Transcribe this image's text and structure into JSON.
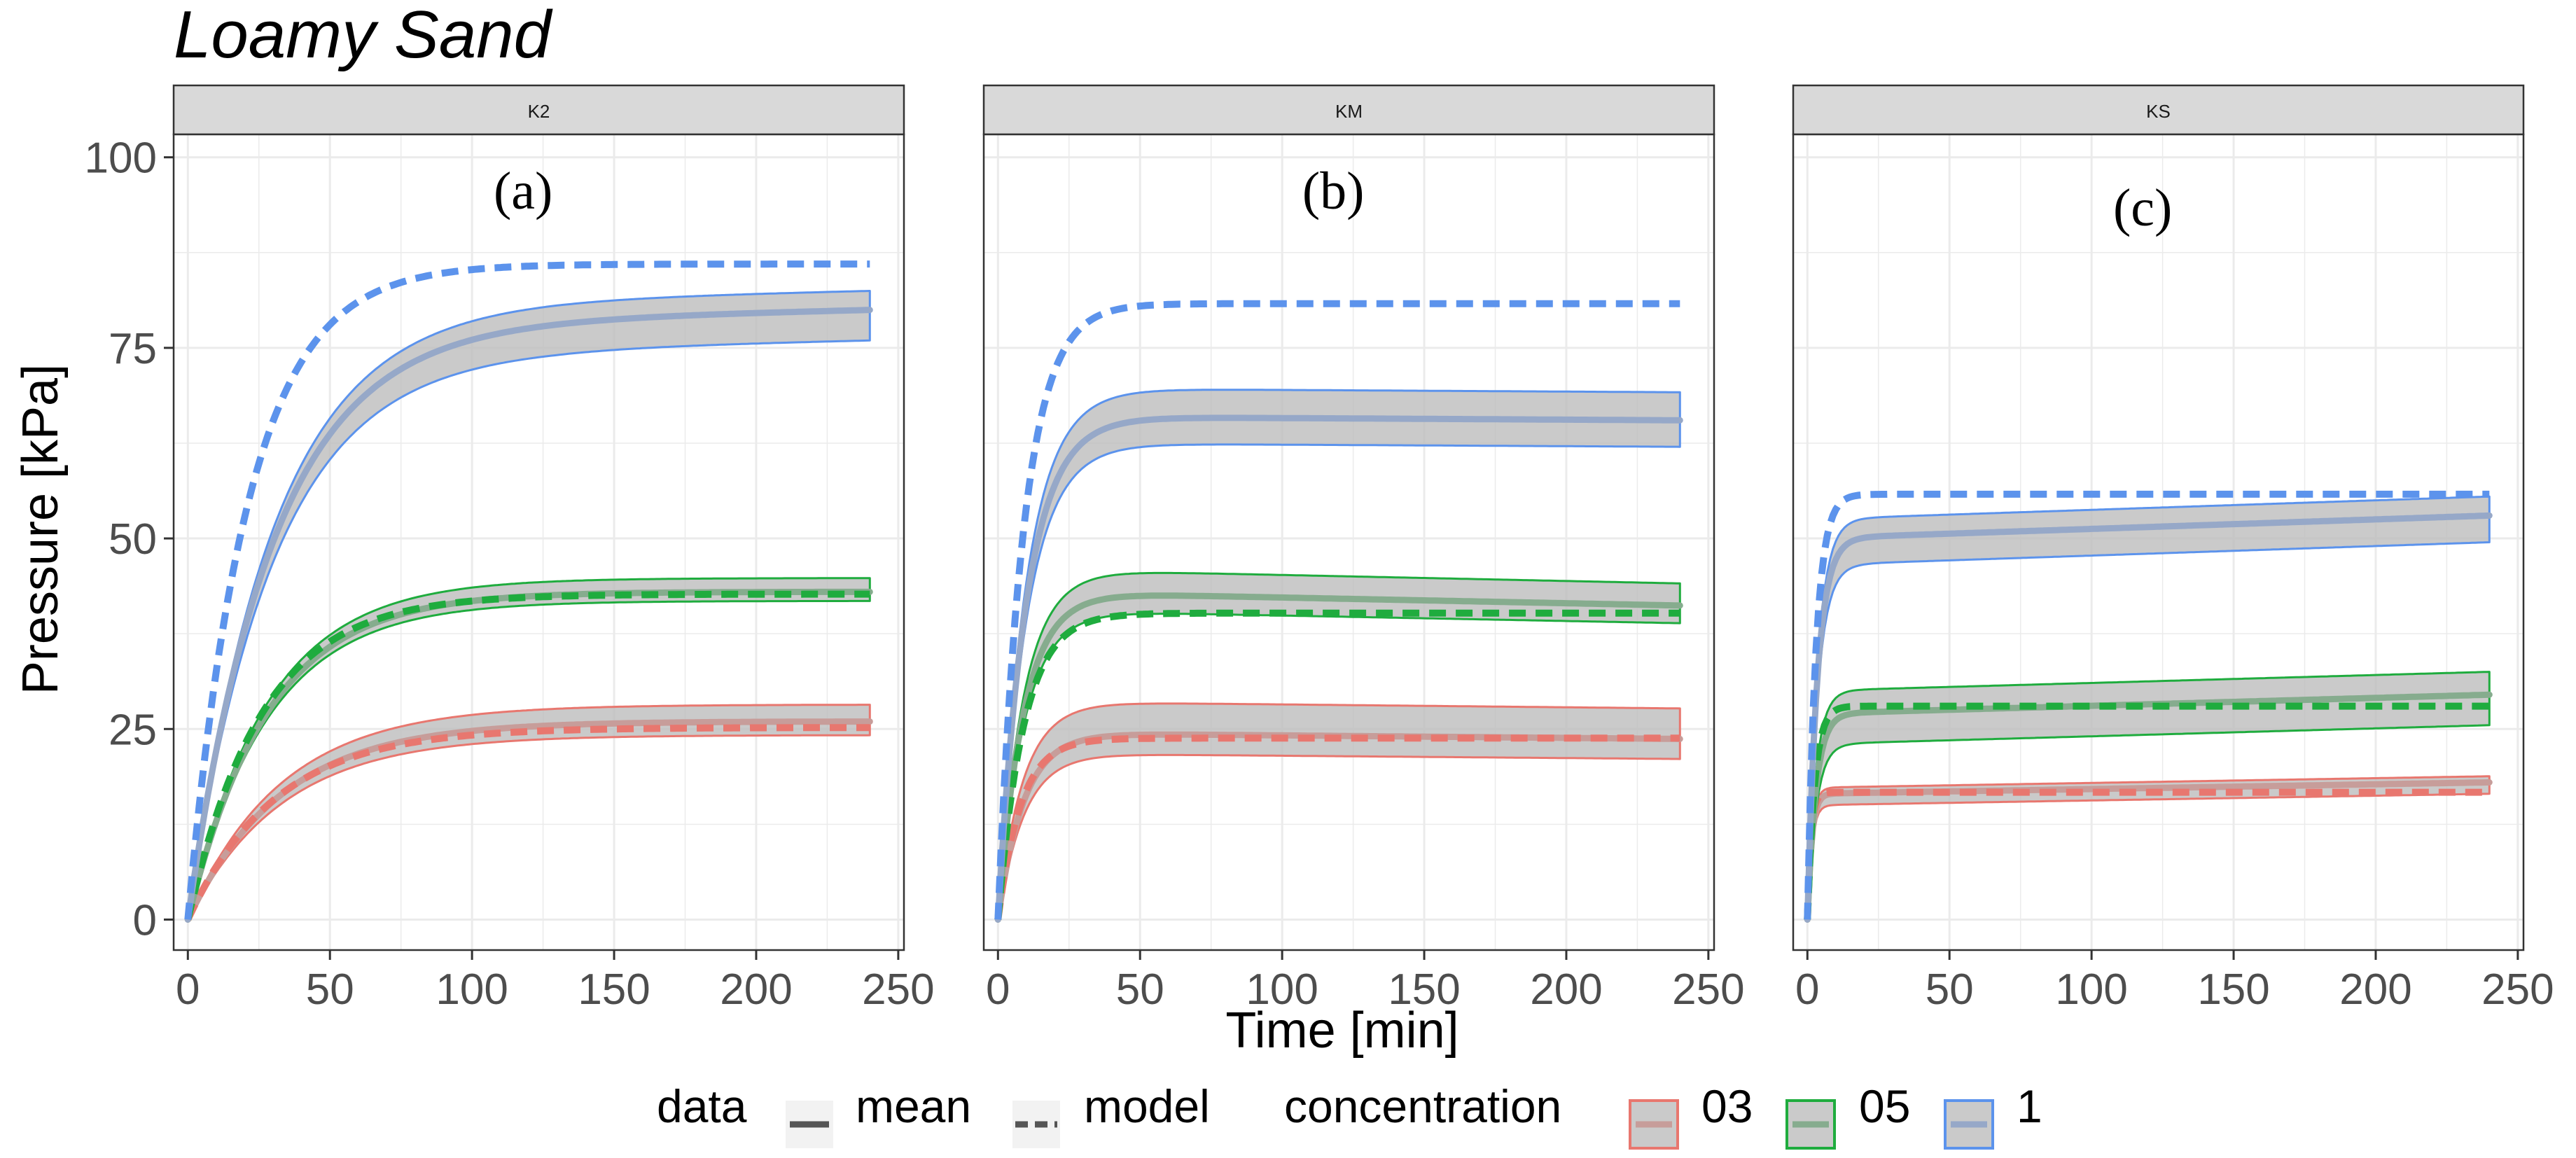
{
  "chart_data": {
    "type": "line",
    "title": "Loamy Sand",
    "xlabel": "Time [min]",
    "ylabel": "Pressure [kPa]",
    "xlim": [
      -5,
      252
    ],
    "ylim": [
      -4,
      103
    ],
    "x_ticks": [
      0,
      50,
      100,
      150,
      200,
      250
    ],
    "y_ticks": [
      0,
      25,
      50,
      75,
      100
    ],
    "x_tick_labels": [
      "0",
      "50",
      "100",
      "150",
      "200",
      "250"
    ],
    "y_tick_labels": [
      "0",
      "25",
      "50",
      "75",
      "100"
    ],
    "grid": true,
    "legend": {
      "position": "bottom",
      "data_title": "data",
      "data_items": [
        "mean",
        "model"
      ],
      "concentration_title": "concentration",
      "concentration_items": [
        "03",
        "05",
        "1"
      ]
    },
    "colors": {
      "03": "#e8776f",
      "05": "#1fac3e",
      "1": "#5c93ec",
      "mean_03": "#c79d9a",
      "mean_05": "#86ac8e",
      "mean_1": "#96a8c8",
      "band_fill": "#bdbdbd",
      "strip_fill": "#d9d9d9",
      "grid": "#ebebeb"
    },
    "panels": [
      {
        "strip": "K2",
        "label": "(a)",
        "series": [
          {
            "concentration": "03",
            "mean": {
              "plateau": 26,
              "tau": 33
            },
            "band": {
              "lower": 24.2,
              "upper": 28.2,
              "ramp": 0.85
            },
            "model": {
              "plateau": 25.2,
              "tau": 31
            }
          },
          {
            "concentration": "05",
            "mean": {
              "plateau": 43,
              "tau": 28
            },
            "band": {
              "lower": 41.8,
              "upper": 44.8,
              "ramp": 0.85
            },
            "model": {
              "plateau": 42.7,
              "tau": 26
            }
          },
          {
            "concentration": "1",
            "mean": {
              "plateau": 78,
              "tau": 30,
              "drift": 2
            },
            "band": {
              "lower": 76,
              "upper": 82.5,
              "ramp": 0.9
            },
            "model": {
              "plateau": 86,
              "tau": 21
            }
          }
        ]
      },
      {
        "strip": "KM",
        "label": "(b)",
        "series": [
          {
            "concentration": "03",
            "mean": {
              "plateau": 24.5,
              "tau": 9,
              "drift": -0.8
            },
            "band": {
              "lower": 21,
              "upper": 27.8,
              "ramp": 0.75
            },
            "model": {
              "plateau": 23.8,
              "tau": 8
            }
          },
          {
            "concentration": "05",
            "mean": {
              "plateau": 43,
              "tau": 9,
              "drift": -1.8
            },
            "band": {
              "lower": 38.8,
              "upper": 44.2,
              "ramp": 0.8
            },
            "model": {
              "plateau": 40.2,
              "tau": 9
            }
          },
          {
            "concentration": "1",
            "mean": {
              "plateau": 66,
              "tau": 10,
              "drift": -0.5
            },
            "band": {
              "lower": 62,
              "upper": 69.2,
              "ramp": 0.8
            },
            "model": {
              "plateau": 80.8,
              "tau": 9
            }
          }
        ]
      },
      {
        "strip": "KS",
        "label": "(c)",
        "series": [
          {
            "concentration": "03",
            "mean": {
              "plateau": 16.5,
              "tau": 1.5,
              "drift": 1.5
            },
            "band": {
              "lower": 16.5,
              "upper": 18.8,
              "ramp": 0.9
            },
            "model": {
              "plateau": 16.7,
              "tau": 1.2
            }
          },
          {
            "concentration": "05",
            "mean": {
              "plateau": 27,
              "tau": 3,
              "drift": 2.5
            },
            "band": {
              "lower": 25.5,
              "upper": 32.5,
              "ramp": 0.75
            },
            "model": {
              "plateau": 28,
              "tau": 2.5
            }
          },
          {
            "concentration": "1",
            "mean": {
              "plateau": 50,
              "tau": 3.5,
              "drift": 3
            },
            "band": {
              "lower": 49.5,
              "upper": 55.5,
              "ramp": 0.85
            },
            "model": {
              "plateau": 55.8,
              "tau": 3
            }
          }
        ]
      }
    ]
  }
}
